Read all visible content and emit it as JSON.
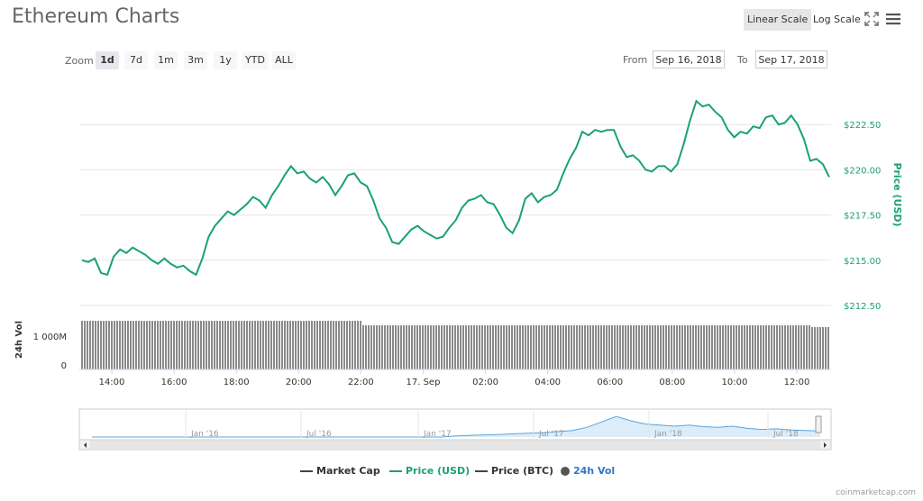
{
  "header": {
    "title": "Ethereum Charts",
    "linear_scale": "Linear Scale",
    "log_scale": "Log Scale"
  },
  "zoom": {
    "label": "Zoom",
    "options": [
      "1d",
      "7d",
      "1m",
      "3m",
      "1y",
      "YTD",
      "ALL"
    ],
    "selected": "1d"
  },
  "range": {
    "from_label": "From",
    "from_value": "Sep 16, 2018",
    "to_label": "To",
    "to_value": "Sep 17, 2018"
  },
  "colors": {
    "price_line": "#1aa07a",
    "volume_bar": "#8a8a8a",
    "navigator_line": "#5aa5dc",
    "navigator_fill": "#dcecf8"
  },
  "chart_data": {
    "type": "line",
    "ylabel": "Price (USD)",
    "ylim": [
      212.5,
      225
    ],
    "yticks": [
      "$222.50",
      "$220.00",
      "$217.50",
      "$215.00",
      "$212.50"
    ],
    "xticks": [
      "14:00",
      "16:00",
      "18:00",
      "20:00",
      "22:00",
      "17. Sep",
      "02:00",
      "04:00",
      "06:00",
      "08:00",
      "10:00",
      "12:00"
    ],
    "series": [
      {
        "name": "Price (USD)",
        "values": [
          215.0,
          214.9,
          215.1,
          214.3,
          214.2,
          215.2,
          215.6,
          215.4,
          215.7,
          215.5,
          215.3,
          215.0,
          214.8,
          215.1,
          214.8,
          214.6,
          214.7,
          214.4,
          214.2,
          215.1,
          216.3,
          216.9,
          217.3,
          217.7,
          217.5,
          217.8,
          218.1,
          218.5,
          218.3,
          217.9,
          218.6,
          219.1,
          219.7,
          220.2,
          219.8,
          219.9,
          219.5,
          219.3,
          219.6,
          219.2,
          218.6,
          219.1,
          219.7,
          219.8,
          219.3,
          219.1,
          218.3,
          217.3,
          216.8,
          216.0,
          215.9,
          216.3,
          216.7,
          216.9,
          216.6,
          216.4,
          216.2,
          216.3,
          216.8,
          217.2,
          217.9,
          218.3,
          218.4,
          218.6,
          218.2,
          218.1,
          217.5,
          216.8,
          216.5,
          217.2,
          218.4,
          218.7,
          218.2,
          218.5,
          218.6,
          218.9,
          219.8,
          220.6,
          221.2,
          222.1,
          221.9,
          222.2,
          222.1,
          222.2,
          222.2,
          221.3,
          220.7,
          220.8,
          220.5,
          220.0,
          219.9,
          220.2,
          220.2,
          219.9,
          220.3,
          221.4,
          222.7,
          223.8,
          223.5,
          223.6,
          223.2,
          222.9,
          222.2,
          221.8,
          222.1,
          222.0,
          222.4,
          222.3,
          222.9,
          223.0,
          222.5,
          222.6,
          223.0,
          222.5,
          221.7,
          220.5,
          220.6,
          220.3,
          219.6
        ]
      },
      {
        "name": "24h Vol",
        "yticks": [
          "1 000M",
          "0"
        ],
        "level": 0.9
      }
    ]
  },
  "axis": {
    "price_title": "Price (USD)",
    "volume_title": "24h Vol"
  },
  "navigator": {
    "labels": [
      "Jan '16",
      "Jul '16",
      "Jan '17",
      "Jul '17",
      "Jan '18",
      "Jul '18"
    ]
  },
  "legend": [
    {
      "label": "Market Cap",
      "color": "#444444",
      "marker": "line"
    },
    {
      "label": "Price (USD)",
      "color": "#1aa07a",
      "marker": "line"
    },
    {
      "label": "Price (BTC)",
      "color": "#444444",
      "marker": "line"
    },
    {
      "label": "24h Vol",
      "color": "#2f78c2",
      "marker": "dot"
    }
  ],
  "credit": "coinmarketcap.com"
}
